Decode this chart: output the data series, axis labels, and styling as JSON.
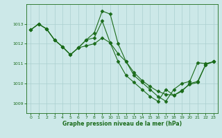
{
  "xlabel": "Graphe pression niveau de la mer (hPa)",
  "bg_color": "#cce8e8",
  "grid_color": "#aacfcf",
  "line_color": "#1a6b1a",
  "ylim": [
    1008.5,
    1014.0
  ],
  "xlim": [
    -0.5,
    23.5
  ],
  "yticks": [
    1009,
    1010,
    1011,
    1012,
    1013
  ],
  "xticks": [
    0,
    1,
    2,
    3,
    4,
    5,
    6,
    7,
    8,
    9,
    10,
    11,
    12,
    13,
    14,
    15,
    16,
    17,
    18,
    19,
    20,
    21,
    22,
    23
  ],
  "s1_x": [
    0,
    1,
    2,
    3,
    4,
    5,
    6,
    7,
    8,
    9,
    10,
    11,
    12,
    13,
    14,
    15,
    16,
    17,
    18,
    19,
    20,
    21,
    22,
    23
  ],
  "s1_y": [
    1012.7,
    1013.0,
    1012.75,
    1012.2,
    1011.85,
    1011.45,
    1011.8,
    1012.2,
    1012.55,
    1013.65,
    1013.5,
    1012.0,
    1011.1,
    1010.4,
    1010.05,
    1009.7,
    1009.35,
    1009.1,
    1009.7,
    1010.0,
    1010.1,
    1011.05,
    1011.0,
    1011.1
  ],
  "s2_x": [
    0,
    1,
    2,
    3,
    4,
    5,
    6,
    7,
    8,
    9,
    10,
    11,
    12,
    13,
    14,
    15,
    16,
    17,
    18,
    19,
    20,
    21,
    22,
    23
  ],
  "s2_y": [
    1012.7,
    1013.0,
    1012.75,
    1012.2,
    1011.85,
    1011.45,
    1011.8,
    1011.9,
    1012.0,
    1012.3,
    1012.05,
    1011.5,
    1011.1,
    1010.55,
    1010.15,
    1009.85,
    1009.6,
    1009.45,
    1009.4,
    1009.65,
    1009.95,
    1010.05,
    1010.95,
    1011.1
  ],
  "s3_x": [
    0,
    1,
    2,
    3,
    4,
    5,
    6,
    7,
    8,
    9,
    10,
    11,
    12,
    13,
    14,
    15,
    16,
    17,
    18,
    19,
    20,
    21,
    22,
    23
  ],
  "s3_y": [
    1012.7,
    1013.0,
    1012.75,
    1012.2,
    1011.85,
    1011.45,
    1011.8,
    1012.2,
    1012.3,
    1013.15,
    1012.05,
    1011.1,
    1010.4,
    1010.05,
    1009.7,
    1009.35,
    1009.1,
    1009.7,
    1009.4,
    1009.6,
    1010.0,
    1010.1,
    1010.95,
    1011.1
  ]
}
